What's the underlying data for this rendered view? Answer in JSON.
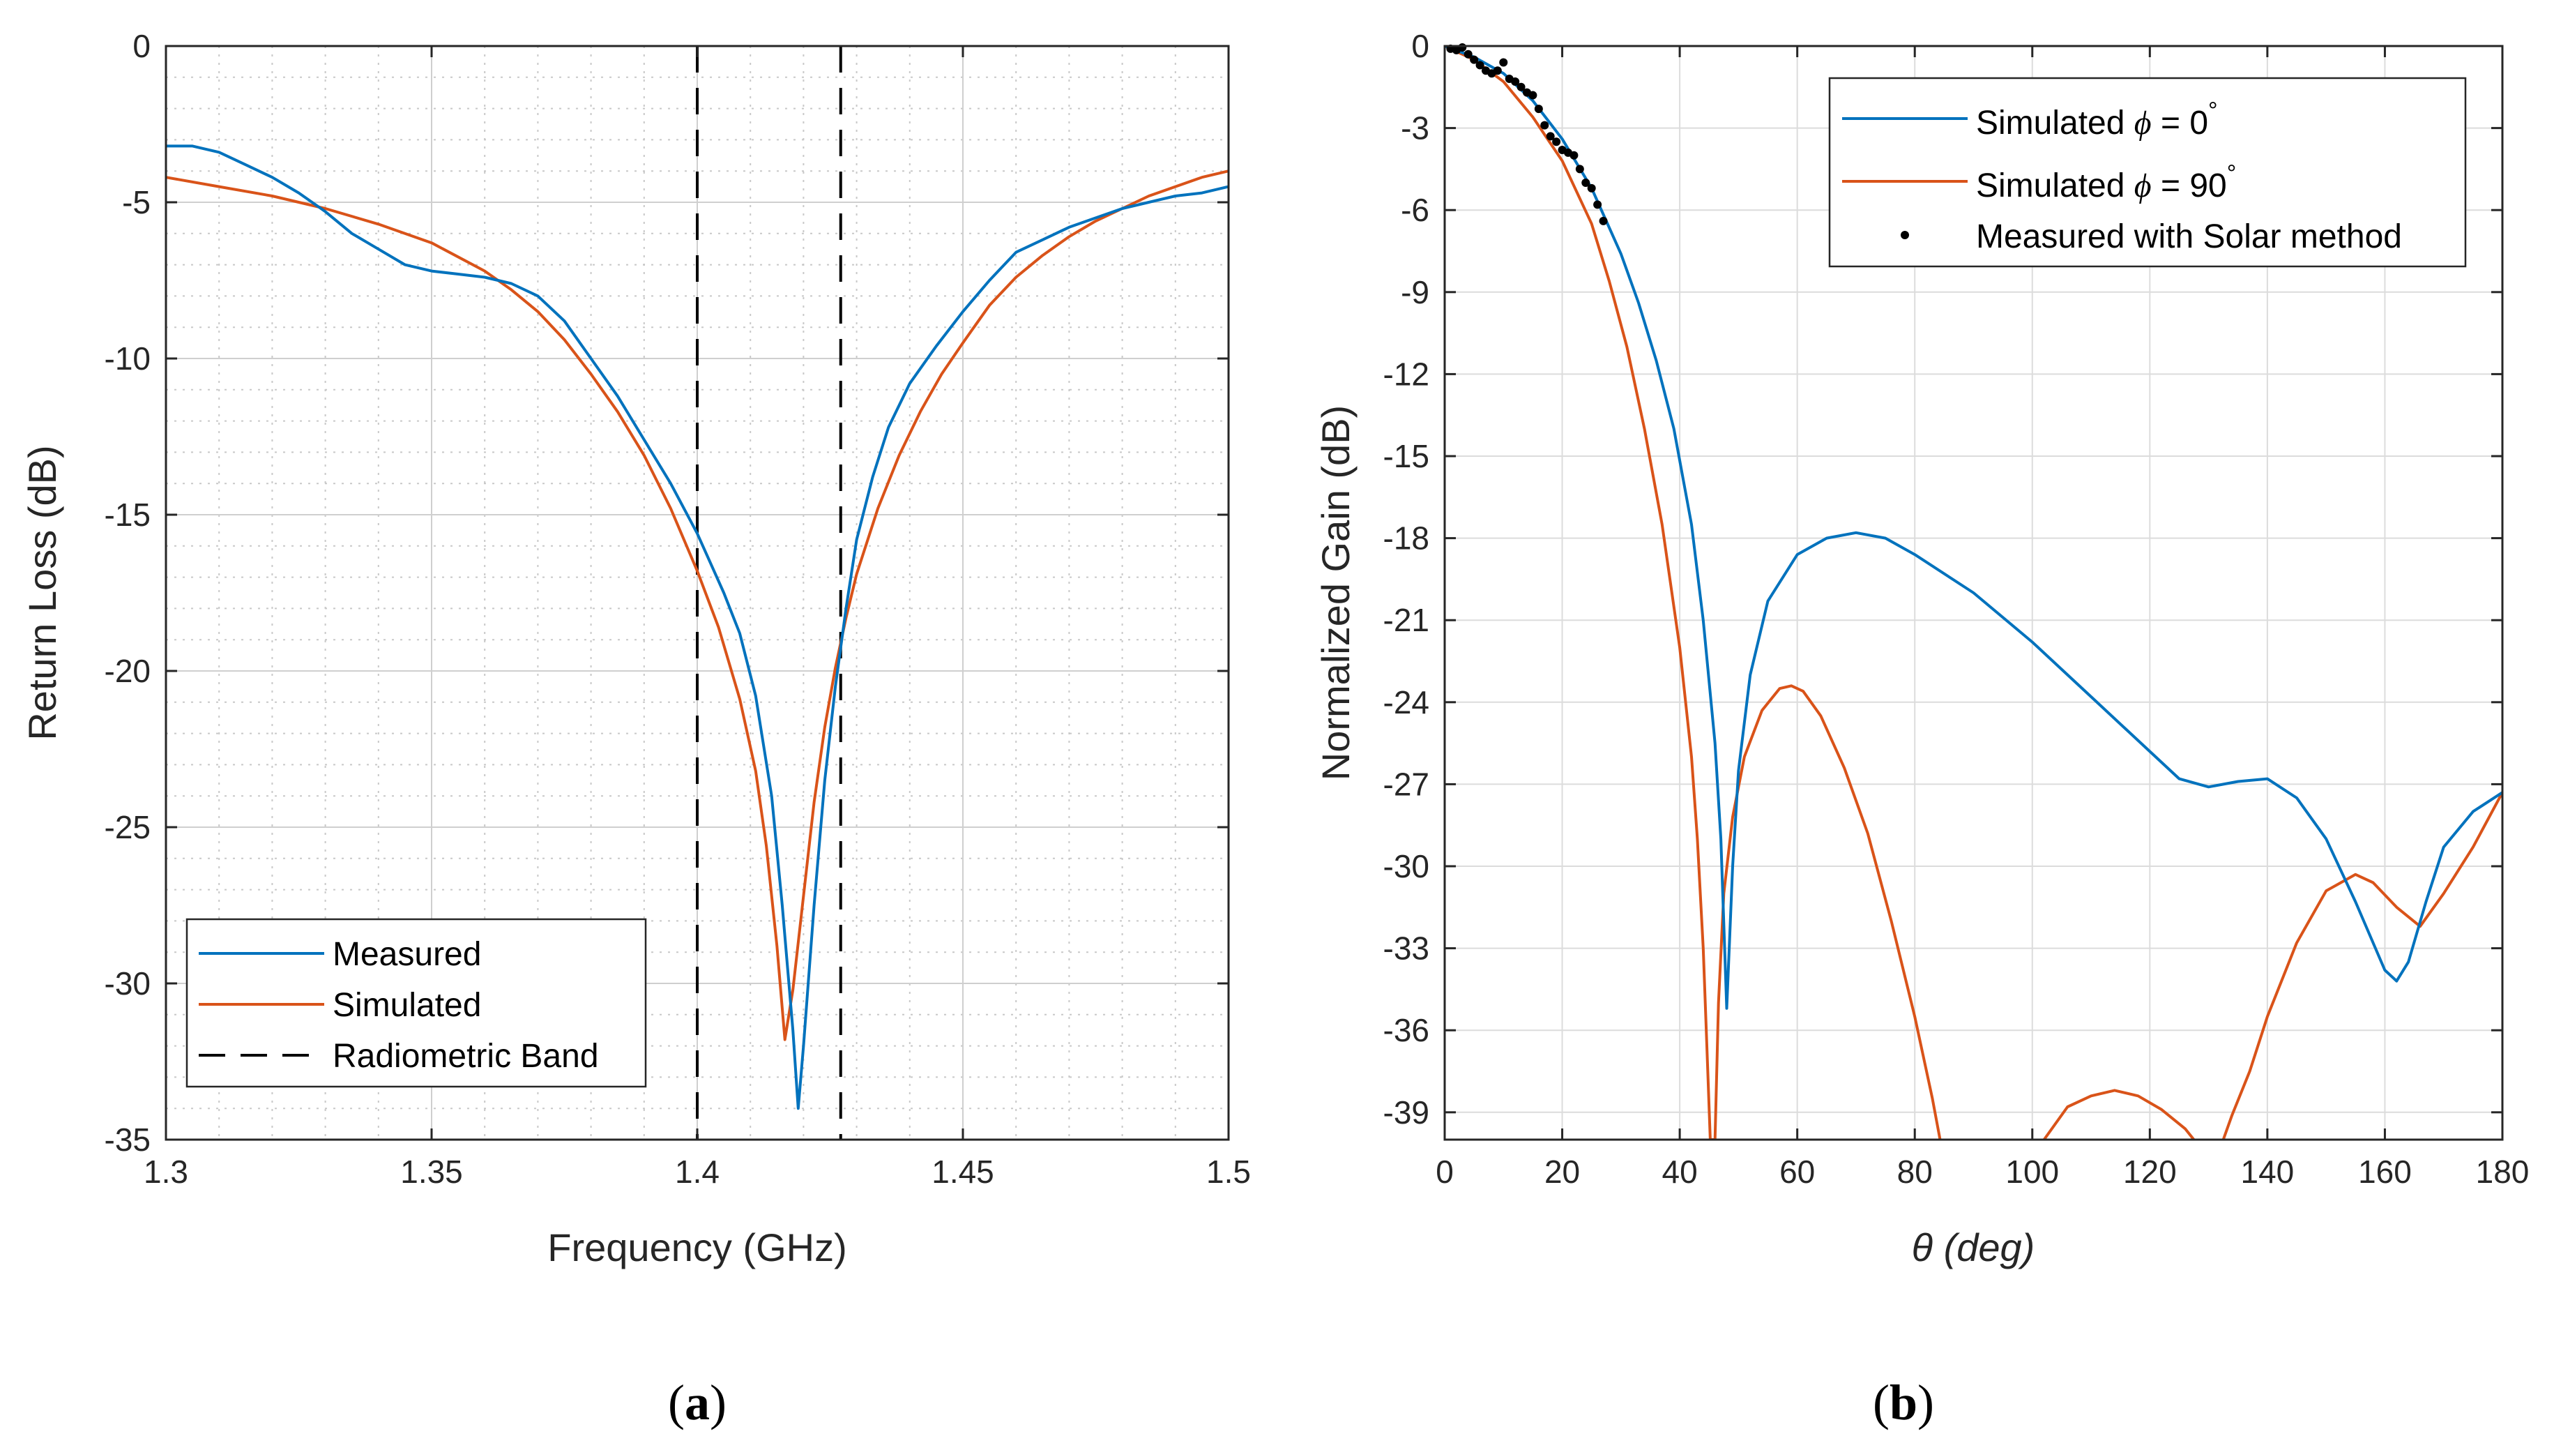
{
  "chart_data": [
    {
      "type": "line",
      "panel_label": "a",
      "xlabel": "Frequency (GHz)",
      "ylabel": "Return Loss (dB)",
      "xlim": [
        1.3,
        1.5
      ],
      "ylim": [
        -35,
        0
      ],
      "xticks": [
        1.3,
        1.35,
        1.4,
        1.45,
        1.5
      ],
      "xtick_labels": [
        "1.3",
        "1.35",
        "1.4",
        "1.45",
        "1.5"
      ],
      "yticks": [
        0,
        -5,
        -10,
        -15,
        -20,
        -25,
        -30,
        -35
      ],
      "ytick_labels": [
        "0",
        "-5",
        "-10",
        "-15",
        "-20",
        "-25",
        "-30",
        "-35"
      ],
      "grid": "major and minor",
      "legend_position": "bottom-left",
      "series": [
        {
          "name": "Measured",
          "color": "#0072BD",
          "style": "solid",
          "x": [
            1.3,
            1.305,
            1.31,
            1.315,
            1.32,
            1.325,
            1.33,
            1.335,
            1.34,
            1.345,
            1.35,
            1.355,
            1.36,
            1.365,
            1.37,
            1.375,
            1.38,
            1.385,
            1.39,
            1.395,
            1.4,
            1.405,
            1.408,
            1.411,
            1.414,
            1.416,
            1.418,
            1.419,
            1.42,
            1.422,
            1.424,
            1.426,
            1.428,
            1.43,
            1.433,
            1.436,
            1.44,
            1.445,
            1.45,
            1.455,
            1.46,
            1.465,
            1.47,
            1.475,
            1.48,
            1.485,
            1.49,
            1.495,
            1.5
          ],
          "y": [
            -3.2,
            -3.2,
            -3.4,
            -3.8,
            -4.2,
            -4.7,
            -5.3,
            -6.0,
            -6.5,
            -7.0,
            -7.2,
            -7.3,
            -7.4,
            -7.6,
            -8.0,
            -8.8,
            -10.0,
            -11.2,
            -12.6,
            -14.0,
            -15.6,
            -17.5,
            -18.8,
            -20.8,
            -24.0,
            -27.5,
            -31.5,
            -34.0,
            -32.0,
            -27.5,
            -23.5,
            -20.5,
            -18.0,
            -15.8,
            -13.8,
            -12.2,
            -10.8,
            -9.6,
            -8.5,
            -7.5,
            -6.6,
            -6.2,
            -5.8,
            -5.5,
            -5.2,
            -5.0,
            -4.8,
            -4.7,
            -4.5
          ]
        },
        {
          "name": "Simulated",
          "color": "#D95319",
          "style": "solid",
          "x": [
            1.3,
            1.31,
            1.32,
            1.33,
            1.34,
            1.35,
            1.36,
            1.365,
            1.37,
            1.375,
            1.38,
            1.385,
            1.39,
            1.395,
            1.4,
            1.404,
            1.408,
            1.411,
            1.413,
            1.415,
            1.4165,
            1.418,
            1.42,
            1.422,
            1.424,
            1.426,
            1.428,
            1.43,
            1.434,
            1.438,
            1.442,
            1.446,
            1.45,
            1.455,
            1.46,
            1.465,
            1.47,
            1.475,
            1.48,
            1.485,
            1.49,
            1.495,
            1.5
          ],
          "y": [
            -4.2,
            -4.5,
            -4.8,
            -5.2,
            -5.7,
            -6.3,
            -7.2,
            -7.8,
            -8.5,
            -9.4,
            -10.5,
            -11.7,
            -13.1,
            -14.8,
            -16.8,
            -18.6,
            -20.9,
            -23.2,
            -25.6,
            -28.8,
            -31.8,
            -30.2,
            -27.2,
            -24.2,
            -21.8,
            -19.9,
            -18.3,
            -16.9,
            -14.8,
            -13.1,
            -11.7,
            -10.5,
            -9.5,
            -8.3,
            -7.4,
            -6.7,
            -6.1,
            -5.6,
            -5.2,
            -4.8,
            -4.5,
            -4.2,
            -4.0
          ]
        }
      ],
      "vlines": {
        "name": "Radiometric Band",
        "color": "#000000",
        "style": "dashed",
        "x": [
          1.4,
          1.427
        ]
      }
    },
    {
      "type": "line",
      "panel_label": "b",
      "xlabel": "θ (deg)",
      "ylabel": "Normalized Gain (dB)",
      "xlim": [
        0,
        180
      ],
      "ylim": [
        -40,
        0
      ],
      "xticks": [
        0,
        20,
        40,
        60,
        80,
        100,
        120,
        140,
        160,
        180
      ],
      "xtick_labels": [
        "0",
        "20",
        "40",
        "60",
        "80",
        "100",
        "120",
        "140",
        "160",
        "180"
      ],
      "yticks": [
        0,
        -3,
        -6,
        -9,
        -12,
        -15,
        -18,
        -21,
        -24,
        -27,
        -30,
        -33,
        -36,
        -39
      ],
      "ytick_labels": [
        "0",
        "-3",
        "-6",
        "-9",
        "-12",
        "-15",
        "-18",
        "-21",
        "-24",
        "-27",
        "-30",
        "-33",
        "-36",
        "-39"
      ],
      "grid": "major",
      "legend_position": "top-right",
      "series": [
        {
          "name": "Simulated ϕ = 0°",
          "legend_prefix": "Simulated ",
          "legend_symbol": "ϕ",
          "legend_suffix": " = 0",
          "legend_degree": "°",
          "color": "#0072BD",
          "style": "solid",
          "x": [
            0,
            5,
            10,
            15,
            20,
            25,
            30,
            33,
            36,
            39,
            42,
            44,
            46,
            47,
            48,
            49,
            50,
            52,
            55,
            60,
            65,
            70,
            75,
            80,
            90,
            100,
            110,
            120,
            125,
            130,
            135,
            140,
            145,
            150,
            155,
            160,
            162,
            164,
            167,
            170,
            175,
            180
          ],
          "y": [
            0,
            -0.4,
            -1.0,
            -2.0,
            -3.4,
            -5.2,
            -7.6,
            -9.4,
            -11.5,
            -14.0,
            -17.5,
            -21.0,
            -25.5,
            -29.0,
            -35.2,
            -30.0,
            -26.5,
            -23.0,
            -20.3,
            -18.6,
            -18.0,
            -17.8,
            -18.0,
            -18.6,
            -20.0,
            -21.8,
            -23.8,
            -25.8,
            -26.8,
            -27.1,
            -26.9,
            -26.8,
            -27.5,
            -29.0,
            -31.3,
            -33.8,
            -34.2,
            -33.5,
            -31.3,
            -29.3,
            -28.0,
            -27.3
          ]
        },
        {
          "name": "Simulated ϕ = 90°",
          "legend_prefix": "Simulated ",
          "legend_symbol": "ϕ",
          "legend_suffix": " = 90",
          "legend_degree": "°",
          "color": "#D95319",
          "style": "solid",
          "x": [
            0,
            5,
            10,
            15,
            20,
            25,
            28,
            31,
            34,
            37,
            40,
            42,
            43,
            44,
            44.6,
            45.2,
            46,
            46.6,
            47.5,
            49,
            51,
            54,
            57,
            59,
            61,
            64,
            68,
            72,
            76,
            80,
            83,
            84.3,
            null,
            102,
            106,
            110,
            114,
            118,
            122,
            126,
            127.5,
            null,
            132.5,
            134,
            137,
            140,
            145,
            150,
            155,
            158,
            162,
            166,
            170,
            175,
            180
          ],
          "y": [
            0,
            -0.5,
            -1.3,
            -2.6,
            -4.2,
            -6.5,
            -8.6,
            -11.0,
            -14.0,
            -17.5,
            -22.0,
            -26.0,
            -29.0,
            -33.0,
            -36.5,
            -40,
            -40,
            -35.0,
            -31.0,
            -28.2,
            -26.0,
            -24.3,
            -23.5,
            -23.4,
            -23.6,
            -24.5,
            -26.4,
            -28.8,
            -32.0,
            -35.5,
            -38.5,
            -40,
            null,
            -40,
            -38.8,
            -38.4,
            -38.2,
            -38.4,
            -38.9,
            -39.6,
            -40,
            null,
            -40,
            -39.1,
            -37.5,
            -35.5,
            -32.8,
            -30.9,
            -30.3,
            -30.6,
            -31.5,
            -32.2,
            -31.0,
            -29.3,
            -27.3
          ]
        },
        {
          "name": "Measured with Solar method",
          "color": "#000000",
          "style": "markers",
          "x": [
            1,
            2,
            3,
            4,
            5,
            6,
            7,
            8,
            9,
            10,
            11,
            12,
            13,
            14,
            15,
            16,
            17,
            18,
            19,
            20,
            21,
            22,
            23,
            24,
            25,
            26,
            27
          ],
          "y": [
            -0.1,
            -0.15,
            -0.05,
            -0.3,
            -0.5,
            -0.7,
            -0.9,
            -1.0,
            -0.9,
            -0.6,
            -1.2,
            -1.3,
            -1.5,
            -1.7,
            -1.8,
            -2.3,
            -2.9,
            -3.3,
            -3.5,
            -3.8,
            -3.9,
            -4.0,
            -4.5,
            -5.0,
            -5.2,
            -5.8,
            -6.4
          ]
        }
      ]
    }
  ],
  "captions": {
    "a": {
      "open": "(",
      "letter": "a",
      "close": ")"
    },
    "b": {
      "open": "(",
      "letter": "b",
      "close": ")"
    }
  }
}
